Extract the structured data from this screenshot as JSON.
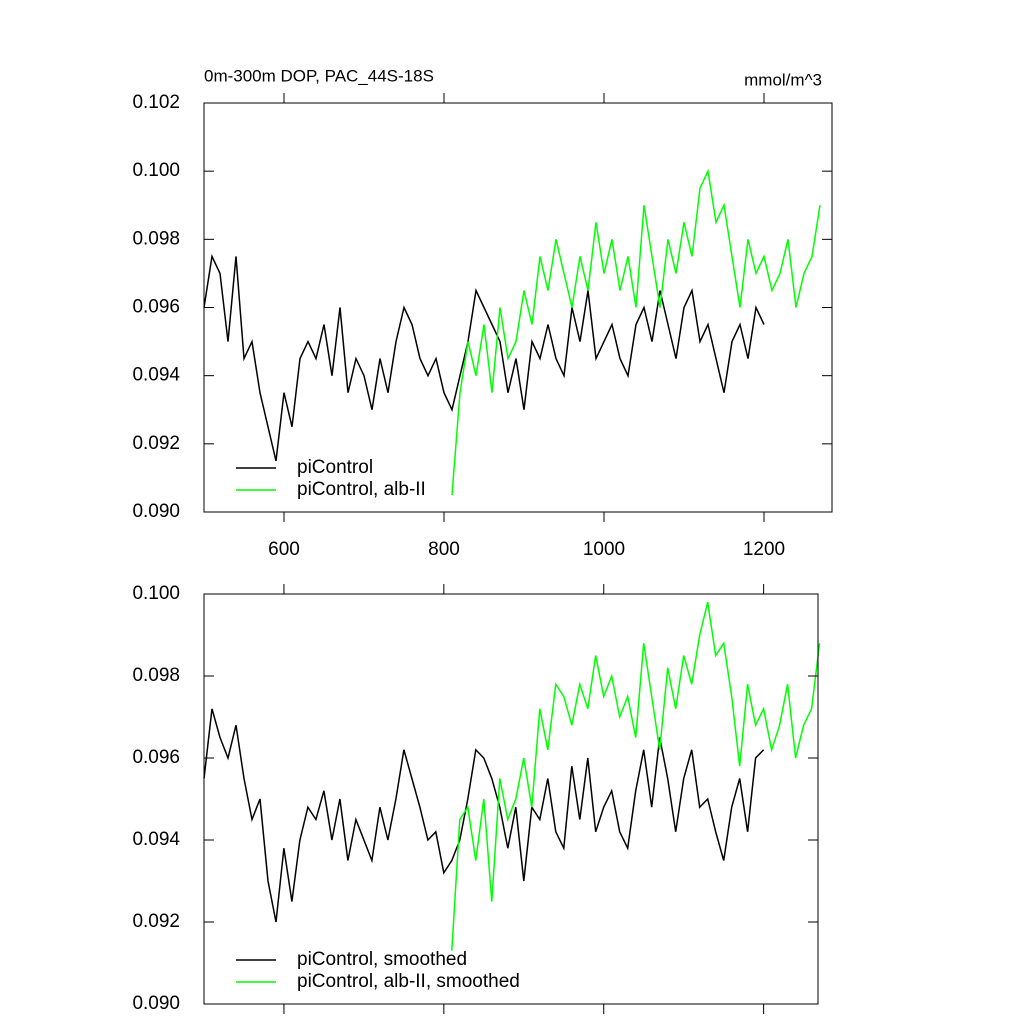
{
  "chart_data": [
    {
      "type": "line",
      "title": "0m-300m DOP, PAC_44S-18S",
      "y_units": "mmol/m^3",
      "xlim": [
        500,
        1285
      ],
      "xticks": [
        600,
        800,
        1000,
        1200
      ],
      "ylim": [
        0.09,
        0.102
      ],
      "yticks": [
        {
          "value": 0.09,
          "label": "0.090"
        },
        0.092,
        0.094,
        0.096,
        0.098,
        {
          "value": 0.1,
          "label": "0.100"
        },
        0.102
      ],
      "series": [
        {
          "name": "piControl",
          "color": "#000000",
          "x": [
            500,
            510,
            520,
            530,
            540,
            550,
            560,
            570,
            580,
            590,
            600,
            610,
            620,
            630,
            640,
            650,
            660,
            670,
            680,
            690,
            700,
            710,
            720,
            730,
            740,
            750,
            760,
            770,
            780,
            790,
            800,
            810,
            820,
            830,
            840,
            850,
            860,
            870,
            880,
            890,
            900,
            910,
            920,
            930,
            940,
            950,
            960,
            970,
            980,
            990,
            1000,
            1010,
            1020,
            1030,
            1040,
            1050,
            1060,
            1070,
            1080,
            1090,
            1100,
            1110,
            1120,
            1130,
            1140,
            1150,
            1160,
            1170,
            1180,
            1190,
            1200
          ],
          "values": [
            0.096,
            0.0975,
            0.097,
            0.095,
            0.0975,
            0.0945,
            0.095,
            0.0935,
            0.0925,
            0.0915,
            0.0935,
            0.0925,
            0.0945,
            0.095,
            0.0945,
            0.0955,
            0.094,
            0.096,
            0.0935,
            0.0945,
            0.094,
            0.093,
            0.0945,
            0.0935,
            0.095,
            0.096,
            0.0955,
            0.0945,
            0.094,
            0.0945,
            0.0935,
            0.093,
            0.094,
            0.095,
            0.0965,
            0.096,
            0.0955,
            0.095,
            0.0935,
            0.0945,
            0.093,
            0.095,
            0.0945,
            0.0955,
            0.0945,
            0.094,
            0.096,
            0.095,
            0.0965,
            0.0945,
            0.095,
            0.0955,
            0.0945,
            0.094,
            0.0955,
            0.096,
            0.095,
            0.0965,
            0.0955,
            0.0945,
            0.096,
            0.0965,
            0.095,
            0.0955,
            0.0945,
            0.0935,
            0.095,
            0.0955,
            0.0945,
            0.096,
            0.0955
          ]
        },
        {
          "name": "piControl, alb-II",
          "color": "#00ff00",
          "x": [
            810,
            820,
            830,
            840,
            850,
            860,
            870,
            880,
            890,
            900,
            910,
            920,
            930,
            940,
            950,
            960,
            970,
            980,
            990,
            1000,
            1010,
            1020,
            1030,
            1040,
            1050,
            1060,
            1070,
            1080,
            1090,
            1100,
            1110,
            1120,
            1130,
            1140,
            1150,
            1160,
            1170,
            1180,
            1190,
            1200,
            1210,
            1220,
            1230,
            1240,
            1250,
            1260,
            1270
          ],
          "values": [
            0.0905,
            0.0935,
            0.095,
            0.094,
            0.0955,
            0.0935,
            0.096,
            0.0945,
            0.095,
            0.0965,
            0.0955,
            0.0975,
            0.0965,
            0.098,
            0.097,
            0.096,
            0.0975,
            0.0965,
            0.0985,
            0.097,
            0.098,
            0.0965,
            0.0975,
            0.096,
            0.099,
            0.0975,
            0.096,
            0.098,
            0.097,
            0.0985,
            0.0975,
            0.0995,
            0.1,
            0.0985,
            0.099,
            0.0975,
            0.096,
            0.098,
            0.097,
            0.0975,
            0.0965,
            0.097,
            0.098,
            0.096,
            0.097,
            0.0975,
            0.099
          ]
        }
      ]
    },
    {
      "type": "line",
      "xlim": [
        500,
        1268
      ],
      "xticks": [
        600,
        800,
        1000,
        1200
      ],
      "ylim": [
        0.09,
        0.1
      ],
      "yticks": [
        {
          "value": 0.09,
          "label": "0.090"
        },
        0.092,
        0.094,
        0.096,
        0.098,
        {
          "value": 0.1,
          "label": "0.100"
        }
      ],
      "series": [
        {
          "name": "piControl, smoothed",
          "color": "#000000",
          "x": [
            500,
            510,
            520,
            530,
            540,
            550,
            560,
            570,
            580,
            590,
            600,
            610,
            620,
            630,
            640,
            650,
            660,
            670,
            680,
            690,
            700,
            710,
            720,
            730,
            740,
            750,
            760,
            770,
            780,
            790,
            800,
            810,
            820,
            830,
            840,
            850,
            860,
            870,
            880,
            890,
            900,
            910,
            920,
            930,
            940,
            950,
            960,
            970,
            980,
            990,
            1000,
            1010,
            1020,
            1030,
            1040,
            1050,
            1060,
            1070,
            1080,
            1090,
            1100,
            1110,
            1120,
            1130,
            1140,
            1150,
            1160,
            1170,
            1180,
            1190,
            1200
          ],
          "values": [
            0.0955,
            0.0972,
            0.0965,
            0.096,
            0.0968,
            0.0955,
            0.0945,
            0.095,
            0.093,
            0.092,
            0.0938,
            0.0925,
            0.094,
            0.0948,
            0.0945,
            0.0952,
            0.094,
            0.095,
            0.0935,
            0.0945,
            0.094,
            0.0935,
            0.0948,
            0.094,
            0.095,
            0.0962,
            0.0955,
            0.0948,
            0.094,
            0.0942,
            0.0932,
            0.0935,
            0.094,
            0.095,
            0.0962,
            0.096,
            0.0955,
            0.0948,
            0.0938,
            0.0948,
            0.093,
            0.0948,
            0.0945,
            0.0955,
            0.0942,
            0.0938,
            0.0958,
            0.0945,
            0.096,
            0.0942,
            0.0948,
            0.0952,
            0.0942,
            0.0938,
            0.0952,
            0.0962,
            0.0948,
            0.0965,
            0.0955,
            0.0942,
            0.0955,
            0.0962,
            0.0948,
            0.095,
            0.0942,
            0.0935,
            0.0948,
            0.0955,
            0.0942,
            0.096,
            0.0962
          ]
        },
        {
          "name": "piControl, alb-II, smoothed",
          "color": "#00ff00",
          "x": [
            810,
            820,
            830,
            840,
            850,
            860,
            870,
            880,
            890,
            900,
            910,
            920,
            930,
            940,
            950,
            960,
            970,
            980,
            990,
            1000,
            1010,
            1020,
            1030,
            1040,
            1050,
            1060,
            1070,
            1080,
            1090,
            1100,
            1110,
            1120,
            1130,
            1140,
            1150,
            1160,
            1170,
            1180,
            1190,
            1200,
            1210,
            1220,
            1230,
            1240,
            1250,
            1260,
            1270
          ],
          "values": [
            0.0913,
            0.0945,
            0.0948,
            0.0935,
            0.095,
            0.0925,
            0.0955,
            0.0945,
            0.095,
            0.096,
            0.0948,
            0.0972,
            0.0962,
            0.0978,
            0.0975,
            0.0968,
            0.0978,
            0.0972,
            0.0985,
            0.0975,
            0.098,
            0.097,
            0.0975,
            0.0965,
            0.0988,
            0.0975,
            0.0962,
            0.0982,
            0.0972,
            0.0985,
            0.0978,
            0.099,
            0.0998,
            0.0985,
            0.0988,
            0.0975,
            0.0958,
            0.0978,
            0.0968,
            0.0972,
            0.0962,
            0.0968,
            0.0978,
            0.096,
            0.0968,
            0.0972,
            0.0988
          ]
        }
      ]
    }
  ]
}
